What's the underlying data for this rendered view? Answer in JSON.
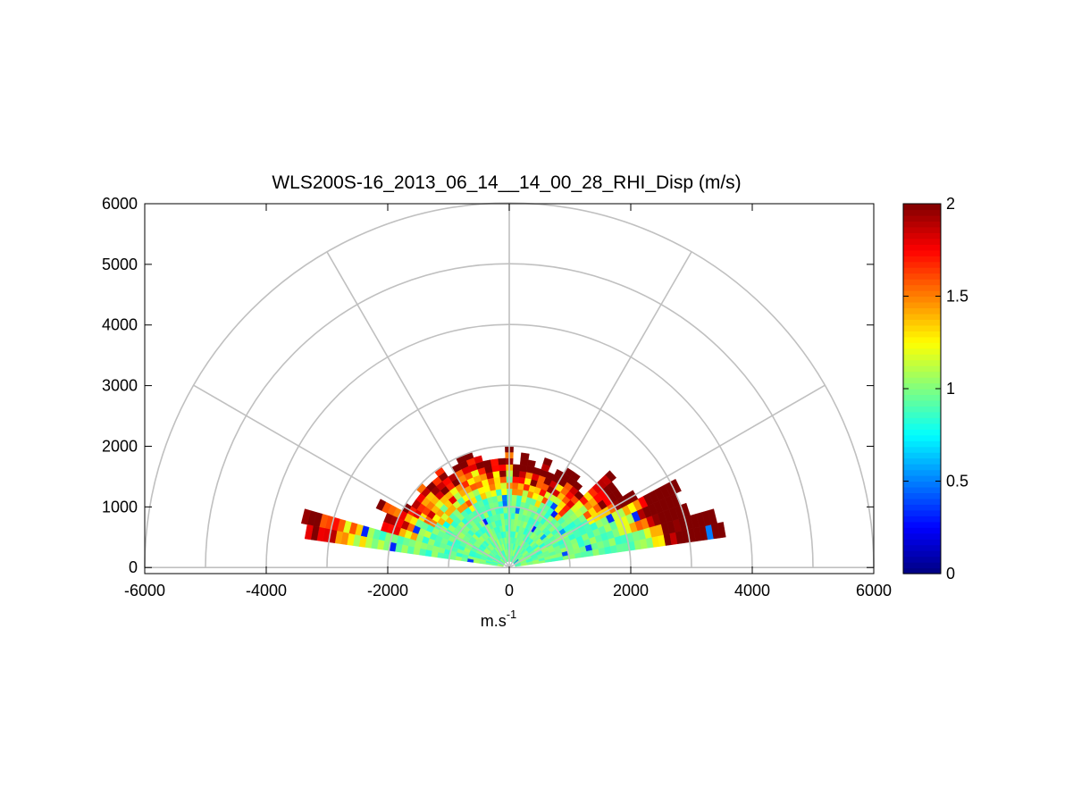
{
  "chart_data": {
    "type": "heatmap",
    "subtype": "polar-rhi-scan",
    "title": "WLS200S-16_2013_06_14__14_00_28_RHI_Disp (m/s)",
    "xlabel": "m.s",
    "xlabel_superscript": "-1",
    "ylabel": "",
    "xlim": [
      -6000,
      6000
    ],
    "ylim": [
      -100,
      6000
    ],
    "x_ticks": [
      -6000,
      -4000,
      -2000,
      0,
      2000,
      4000,
      6000
    ],
    "x_tick_labels": [
      "-6000",
      "-4000",
      "-2000",
      "0",
      "2000",
      "4000",
      "6000"
    ],
    "y_ticks": [
      0,
      1000,
      2000,
      3000,
      4000,
      5000,
      6000
    ],
    "y_tick_labels": [
      "0",
      "1000",
      "2000",
      "3000",
      "4000",
      "5000",
      "6000"
    ],
    "polar_grid": {
      "ring_radii": [
        1000,
        2000,
        3000,
        4000,
        5000,
        6000
      ],
      "spoke_angles_deg": [
        0,
        30,
        60,
        90,
        120,
        150,
        180
      ]
    },
    "colorbar": {
      "colormap": "jet",
      "range": [
        0,
        2
      ],
      "ticks": [
        0,
        0.5,
        1,
        1.5,
        2
      ],
      "tick_labels": [
        "0",
        "0.5",
        "1",
        "1.5",
        "2"
      ]
    },
    "scan": {
      "elevation_range_deg": [
        8,
        172
      ],
      "max_range_m": 3800,
      "core_value": 0.95,
      "description": "Dispersion mostly ~0.9-1.1 m/s near the lidar; values rise to 1.5-2+ m/s at far ranges and low elevations, especially on the east side (x 2500-3700 m)."
    }
  }
}
